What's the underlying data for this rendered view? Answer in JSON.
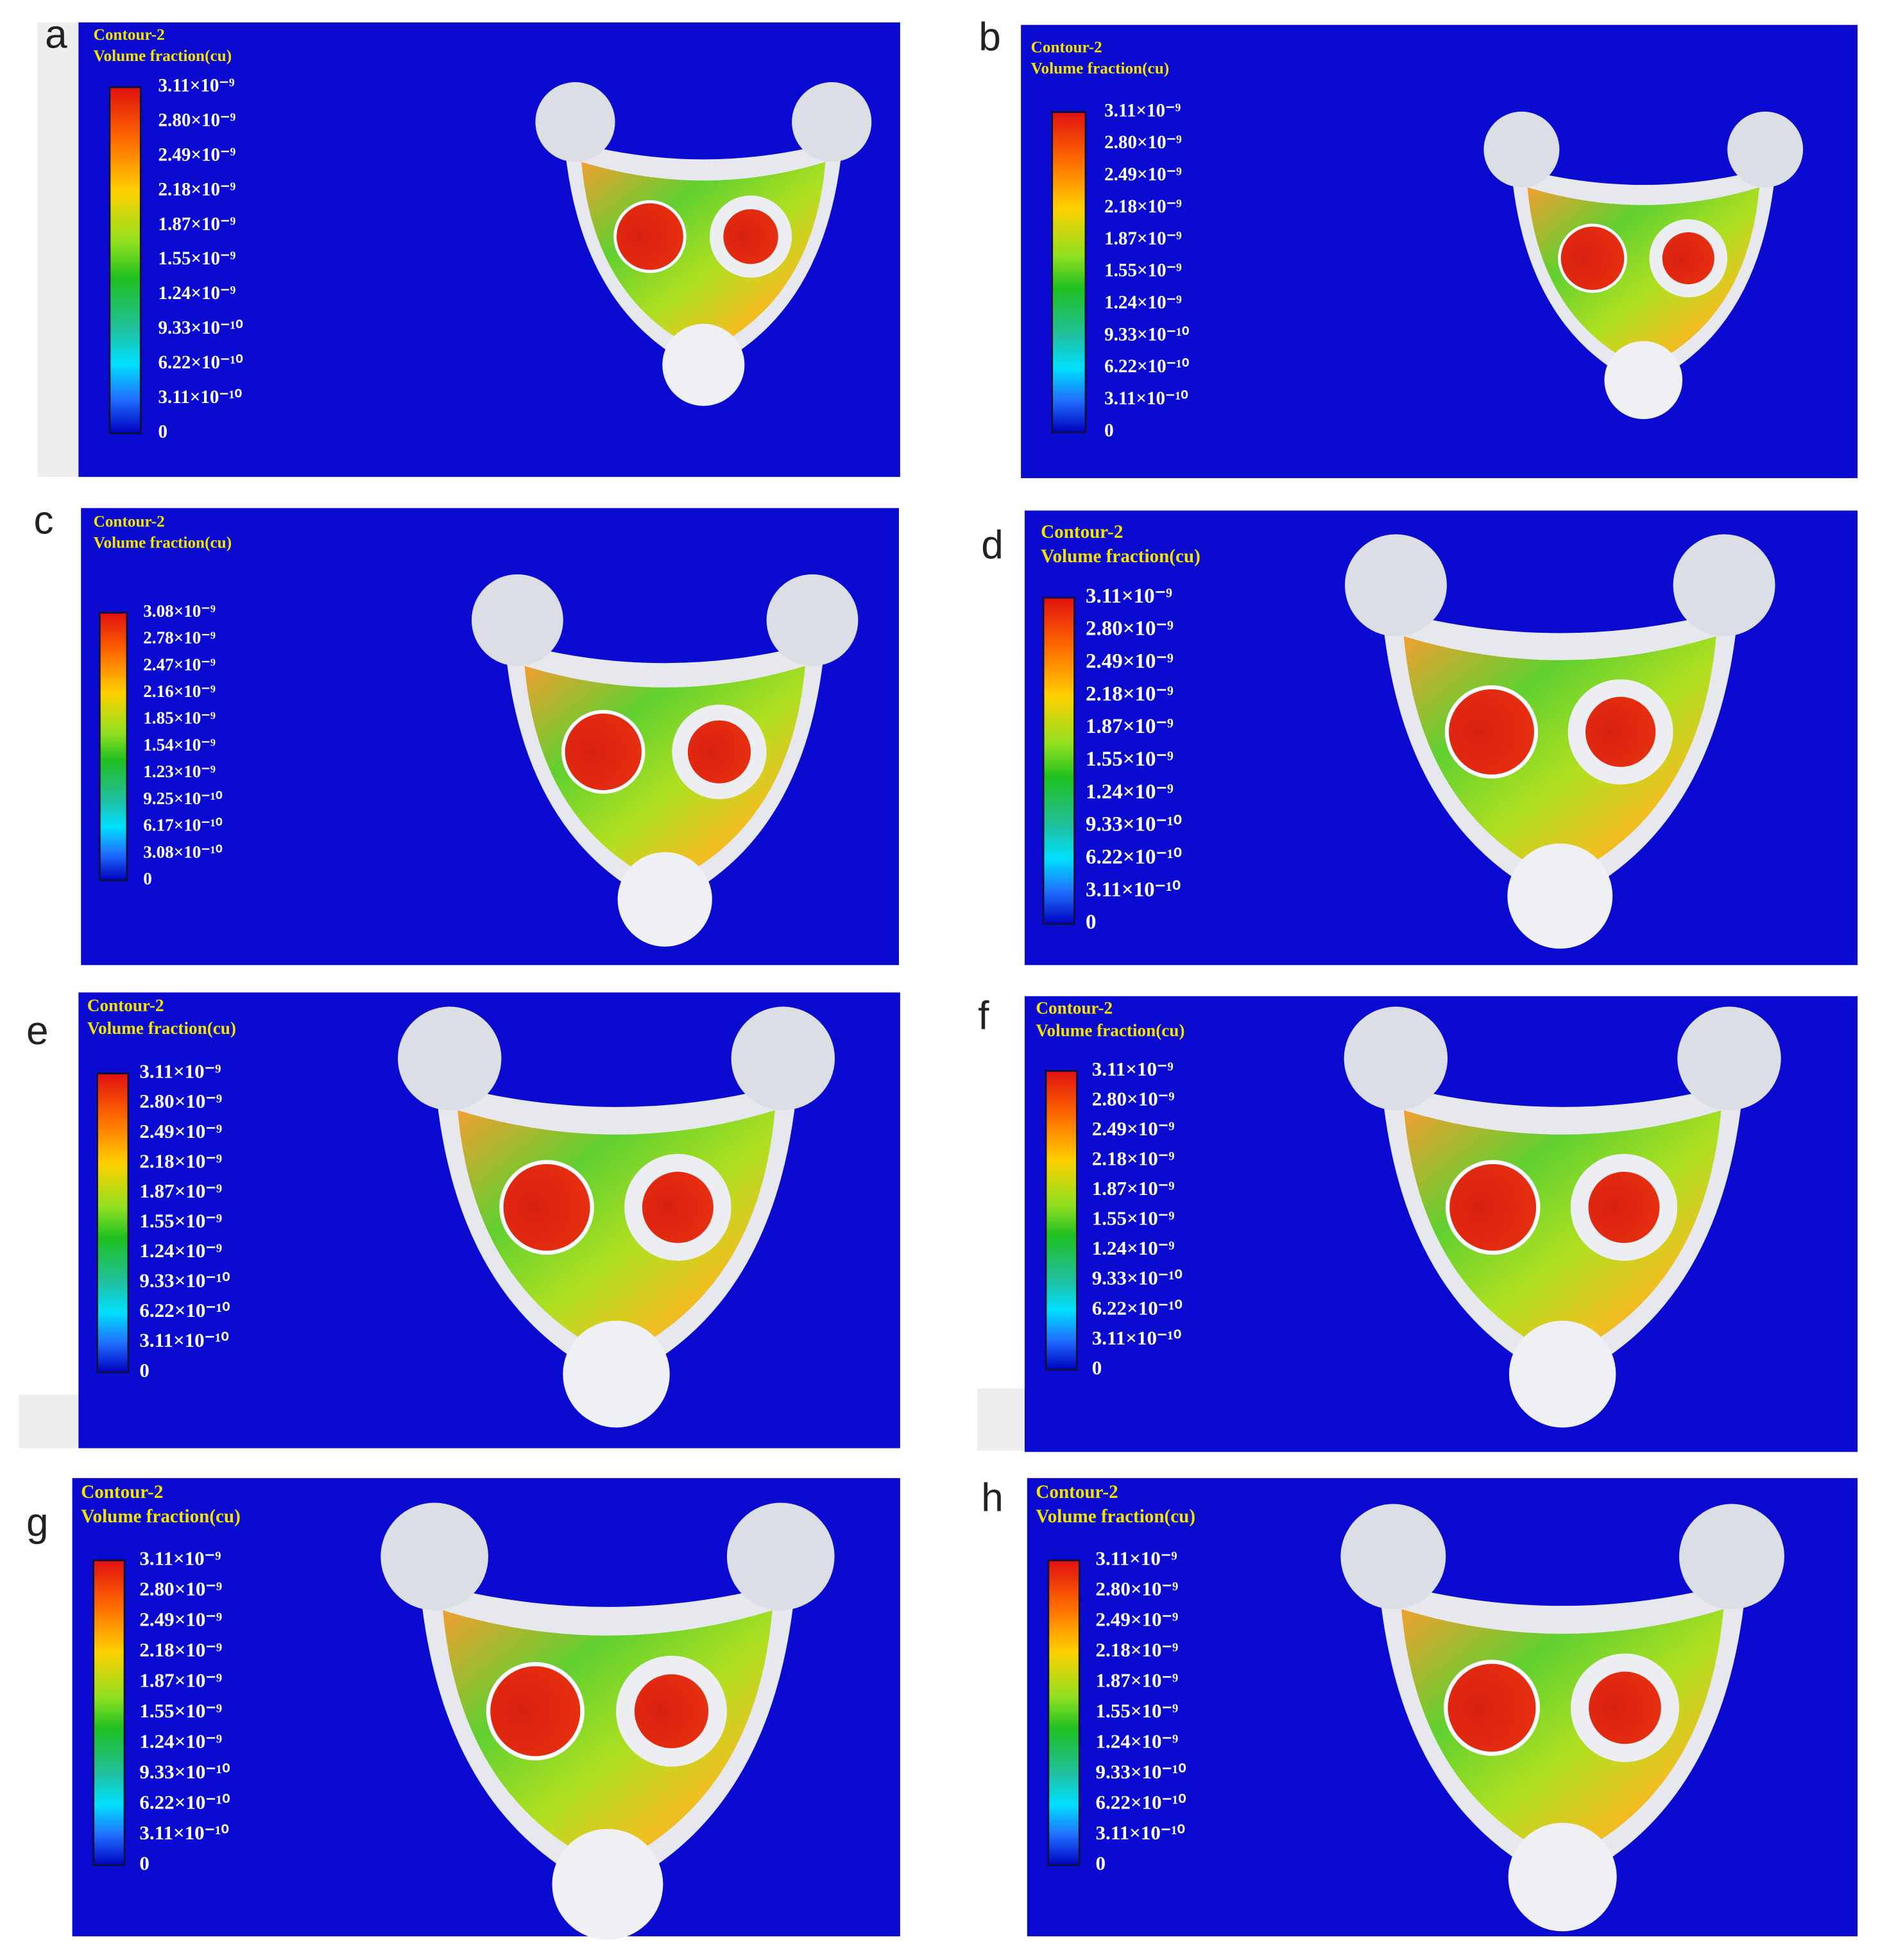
{
  "panels": [
    {
      "label": "a",
      "title": "Contour-2",
      "subtitle": "Volume fraction(cu)",
      "ticks": [
        "3.11×10⁻⁹",
        "2.80×10⁻⁹",
        "2.49×10⁻⁹",
        "2.18×10⁻⁹",
        "1.87×10⁻⁹",
        "1.55×10⁻⁹",
        "1.24×10⁻⁹",
        "9.33×10⁻¹⁰",
        "6.22×10⁻¹⁰",
        "3.11×10⁻¹⁰",
        "0"
      ]
    },
    {
      "label": "b",
      "title": "Contour-2",
      "subtitle": "Volume fraction(cu)",
      "ticks": [
        "3.11×10⁻⁹",
        "2.80×10⁻⁹",
        "2.49×10⁻⁹",
        "2.18×10⁻⁹",
        "1.87×10⁻⁹",
        "1.55×10⁻⁹",
        "1.24×10⁻⁹",
        "9.33×10⁻¹⁰",
        "6.22×10⁻¹⁰",
        "3.11×10⁻¹⁰",
        "0"
      ]
    },
    {
      "label": "c",
      "title": "Contour-2",
      "subtitle": "Volume fraction(cu)",
      "ticks": [
        "3.08×10⁻⁹",
        "2.78×10⁻⁹",
        "2.47×10⁻⁹",
        "2.16×10⁻⁹",
        "1.85×10⁻⁹",
        "1.54×10⁻⁹",
        "1.23×10⁻⁹",
        "9.25×10⁻¹⁰",
        "6.17×10⁻¹⁰",
        "3.08×10⁻¹⁰",
        "0"
      ]
    },
    {
      "label": "d",
      "title": "Contour-2",
      "subtitle": "Volume fraction(cu)",
      "ticks": [
        "3.11×10⁻⁹",
        "2.80×10⁻⁹",
        "2.49×10⁻⁹",
        "2.18×10⁻⁹",
        "1.87×10⁻⁹",
        "1.55×10⁻⁹",
        "1.24×10⁻⁹",
        "9.33×10⁻¹⁰",
        "6.22×10⁻¹⁰",
        "3.11×10⁻¹⁰",
        "0"
      ]
    },
    {
      "label": "e",
      "title": "Contour-2",
      "subtitle": "Volume fraction(cu)",
      "ticks": [
        "3.11×10⁻⁹",
        "2.80×10⁻⁹",
        "2.49×10⁻⁹",
        "2.18×10⁻⁹",
        "1.87×10⁻⁹",
        "1.55×10⁻⁹",
        "1.24×10⁻⁹",
        "9.33×10⁻¹⁰",
        "6.22×10⁻¹⁰",
        "3.11×10⁻¹⁰",
        "0"
      ]
    },
    {
      "label": "f",
      "title": "Contour-2",
      "subtitle": "Volume fraction(cu)",
      "ticks": [
        "3.11×10⁻⁹",
        "2.80×10⁻⁹",
        "2.49×10⁻⁹",
        "2.18×10⁻⁹",
        "1.87×10⁻⁹",
        "1.55×10⁻⁹",
        "1.24×10⁻⁹",
        "9.33×10⁻¹⁰",
        "6.22×10⁻¹⁰",
        "3.11×10⁻¹⁰",
        "0"
      ]
    },
    {
      "label": "g",
      "title": "Contour-2",
      "subtitle": "Volume fraction(cu)",
      "ticks": [
        "3.11×10⁻⁹",
        "2.80×10⁻⁹",
        "2.49×10⁻⁹",
        "2.18×10⁻⁹",
        "1.87×10⁻⁹",
        "1.55×10⁻⁹",
        "1.24×10⁻⁹",
        "9.33×10⁻¹⁰",
        "6.22×10⁻¹⁰",
        "3.11×10⁻¹⁰",
        "0"
      ]
    },
    {
      "label": "h",
      "title": "Contour-2",
      "subtitle": "Volume fraction(cu)",
      "ticks": [
        "3.11×10⁻⁹",
        "2.80×10⁻⁹",
        "2.49×10⁻⁹",
        "2.18×10⁻⁹",
        "1.87×10⁻⁹",
        "1.55×10⁻⁹",
        "1.24×10⁻⁹",
        "9.33×10⁻¹⁰",
        "6.22×10⁻¹⁰",
        "3.11×10⁻¹⁰",
        "0"
      ]
    }
  ]
}
